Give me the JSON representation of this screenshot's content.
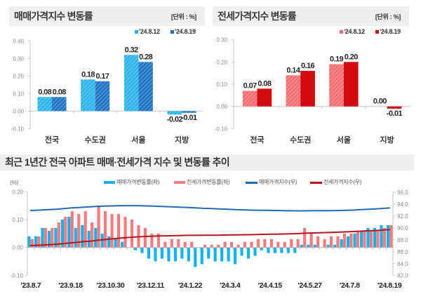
{
  "chart_data": [
    {
      "type": "bar",
      "title": "매매가격지수 변동률",
      "unit_label": "[단위 : %]",
      "categories": [
        "전국",
        "수도권",
        "서울",
        "지방"
      ],
      "series": [
        {
          "name": "'24.8.12",
          "values": [
            0.08,
            0.18,
            0.32,
            -0.02
          ],
          "labels": [
            "0.08",
            "0.18",
            "0.32",
            "-0.02"
          ],
          "color": "#2ab2ea",
          "pattern": "hatched"
        },
        {
          "name": "'24.8.19",
          "values": [
            0.08,
            0.17,
            0.28,
            -0.01
          ],
          "labels": [
            "0.08",
            "0.17",
            "0.28",
            "-0.01"
          ],
          "color": "#1a72c4",
          "pattern": "hatched"
        }
      ],
      "ytick_labels": [
        "0.40",
        "0.30",
        "0.20",
        "0.10",
        "0.00",
        "-0.10"
      ],
      "ylim": [
        -0.1,
        0.4
      ],
      "xlabel": "",
      "ylabel": "",
      "legend": "top-right",
      "grid": false
    },
    {
      "type": "bar",
      "title": "전세가격지수 변동률",
      "unit_label": "[단위 : %]",
      "categories": [
        "전국",
        "수도권",
        "서울",
        "지방"
      ],
      "series": [
        {
          "name": "'24.8.12",
          "values": [
            0.07,
            0.14,
            0.19,
            0.0
          ],
          "labels": [
            "0.07",
            "0.14",
            "0.19",
            "0.00"
          ],
          "color": "#f26b6d",
          "pattern": "hatched"
        },
        {
          "name": "'24.8.19",
          "values": [
            0.08,
            0.16,
            0.2,
            -0.01
          ],
          "labels": [
            "0.08",
            "0.16",
            "0.20",
            "-0.01"
          ],
          "color": "#d20b10",
          "pattern": "solid"
        }
      ],
      "ytick_labels": [
        "0.30",
        "0.20",
        "0.10",
        "0.00",
        "-0.10"
      ],
      "ylim": [
        -0.1,
        0.3
      ],
      "xlabel": "",
      "ylabel": "",
      "legend": "top-right",
      "grid": false
    },
    {
      "type": "bar",
      "title": "최근 1년간 전국 아파트 매매·전세가격 지수 및 변동률 추이",
      "y_left_label": "(%)",
      "ylim_left": [
        -0.1,
        0.2
      ],
      "ytick_labels_left": [
        "0.20",
        "0.10",
        "0.00",
        "-0.10"
      ],
      "ylim_right": [
        82.0,
        96.0
      ],
      "ytick_labels_right": [
        "96.0",
        "94.0",
        "92.0",
        "90.0",
        "88.0",
        "86.0",
        "84.0",
        "82.0"
      ],
      "x_period": "weekly",
      "xticks": [
        {
          "index": 0,
          "label": "'23.8.7"
        },
        {
          "index": 6,
          "label": "'23.9.18"
        },
        {
          "index": 12,
          "label": "'23.10.30"
        },
        {
          "index": 18,
          "label": "'23.12.11"
        },
        {
          "index": 24,
          "label": "'24.1.22"
        },
        {
          "index": 30,
          "label": "'24.3.4"
        },
        {
          "index": 36,
          "label": "'24.4.15"
        },
        {
          "index": 42,
          "label": "'24.5.27"
        },
        {
          "index": 48,
          "label": "'24.7.8"
        },
        {
          "index": 54,
          "label": "'24.8.19"
        }
      ],
      "series": [
        {
          "name": "매매가격변동률(좌)",
          "type": "bar",
          "axis": "left",
          "color": "#17b1ee",
          "values": [
            0.04,
            0.04,
            0.07,
            0.06,
            0.07,
            0.1,
            0.11,
            0.07,
            0.08,
            0.06,
            0.07,
            0.05,
            0.04,
            0.03,
            0.02,
            0.0,
            -0.01,
            -0.02,
            -0.04,
            -0.05,
            -0.04,
            -0.05,
            -0.05,
            -0.04,
            -0.05,
            -0.07,
            -0.06,
            -0.04,
            -0.05,
            -0.05,
            -0.05,
            -0.06,
            -0.03,
            -0.04,
            -0.03,
            -0.01,
            -0.02,
            -0.02,
            -0.02,
            -0.02,
            -0.02,
            0.01,
            0.01,
            0.01,
            0.0,
            0.01,
            0.01,
            0.03,
            0.04,
            0.05,
            0.06,
            0.07,
            0.07,
            0.08,
            0.08
          ]
        },
        {
          "name": "전세가격변동률(좌)",
          "type": "bar",
          "axis": "left",
          "color": "#f87a7e",
          "values": [
            0.03,
            0.04,
            0.07,
            0.07,
            0.09,
            0.11,
            0.13,
            0.12,
            0.13,
            0.09,
            0.15,
            0.13,
            0.12,
            0.12,
            0.11,
            0.1,
            0.08,
            0.07,
            0.05,
            0.05,
            0.02,
            0.03,
            0.03,
            0.02,
            0.02,
            0.0,
            0.01,
            0.01,
            0.01,
            0.02,
            0.02,
            0.01,
            0.02,
            0.02,
            0.03,
            0.03,
            0.03,
            0.02,
            0.02,
            0.03,
            0.03,
            0.07,
            0.05,
            0.04,
            0.03,
            0.04,
            0.04,
            0.05,
            0.05,
            0.06,
            0.06,
            0.06,
            0.06,
            0.07,
            0.08
          ]
        },
        {
          "name": "매매가격지수(우)",
          "type": "line",
          "axis": "right",
          "color": "#1f6db6",
          "values": [
            92.94,
            92.98,
            93.04,
            93.1,
            93.16,
            93.26,
            93.36,
            93.42,
            93.5,
            93.56,
            93.62,
            93.67,
            93.7,
            93.73,
            93.75,
            93.75,
            93.74,
            93.72,
            93.69,
            93.64,
            93.6,
            93.56,
            93.51,
            93.47,
            93.42,
            93.36,
            93.3,
            93.27,
            93.22,
            93.17,
            93.13,
            93.07,
            93.04,
            93.0,
            92.98,
            92.97,
            92.95,
            92.93,
            92.91,
            92.89,
            92.87,
            92.88,
            92.89,
            92.9,
            92.9,
            92.91,
            92.92,
            92.95,
            92.98,
            93.03,
            93.09,
            93.15,
            93.22,
            93.29,
            93.36
          ]
        },
        {
          "name": "전세가격지수(우)",
          "type": "line",
          "axis": "right",
          "color": "#b8141c",
          "values": [
            87.04,
            87.08,
            87.14,
            87.2,
            87.28,
            87.37,
            87.49,
            87.59,
            87.71,
            87.78,
            87.92,
            88.03,
            88.14,
            88.24,
            88.34,
            88.43,
            88.5,
            88.56,
            88.6,
            88.65,
            88.67,
            88.69,
            88.72,
            88.74,
            88.76,
            88.76,
            88.77,
            88.77,
            88.78,
            88.8,
            88.82,
            88.83,
            88.85,
            88.86,
            88.89,
            88.92,
            88.95,
            88.96,
            88.98,
            89.01,
            89.04,
            89.1,
            89.14,
            89.18,
            89.21,
            89.24,
            89.28,
            89.32,
            89.37,
            89.42,
            89.48,
            89.53,
            89.58,
            89.65,
            89.72
          ]
        }
      ],
      "xlabel": "",
      "legend": "top",
      "grid": false
    }
  ]
}
